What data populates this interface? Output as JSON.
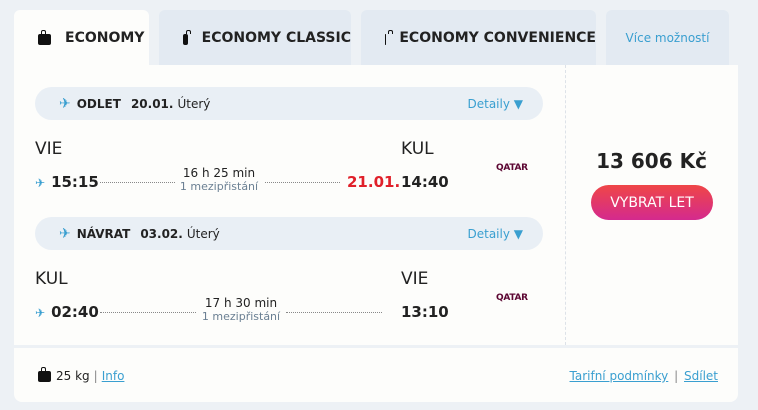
{
  "tabs": [
    {
      "label": "ECONOMY",
      "icon": "bag-icon"
    },
    {
      "label": "ECONOMY CLASSIC",
      "icon": "bag-icon"
    },
    {
      "label": "ECONOMY CONVENIENCE",
      "icon": "bag-icon"
    },
    {
      "label": "Více možností"
    }
  ],
  "outbound": {
    "label": "ODLET",
    "date": "20.01.",
    "day": "Úterý",
    "details": "Detaily ▼",
    "from": "VIE",
    "to": "KUL",
    "dep": "15:15",
    "arr": "14:40",
    "arr_date": "21.01.",
    "duration": "16 h 25 min",
    "stops": "1 mezipřistání",
    "airline": "QATAR"
  },
  "inbound": {
    "label": "NÁVRAT",
    "date": "03.02.",
    "day": "Úterý",
    "details": "Detaily ▼",
    "from": "KUL",
    "to": "VIE",
    "dep": "02:40",
    "arr": "13:10",
    "duration": "17 h 30 min",
    "stops": "1 mezipřistání",
    "airline": "QATAR"
  },
  "price": "13 606 Kč",
  "select_button": "VYBRAT LET",
  "footer": {
    "baggage": "25 kg",
    "info": "Info",
    "conditions": "Tarifní podmínky",
    "share": "Sdílet",
    "sep": "|"
  },
  "colors": {
    "accent": "#3a9fd0",
    "button_start": "#ef4647",
    "button_end": "#d42a8e",
    "next_day": "#e0202a"
  }
}
